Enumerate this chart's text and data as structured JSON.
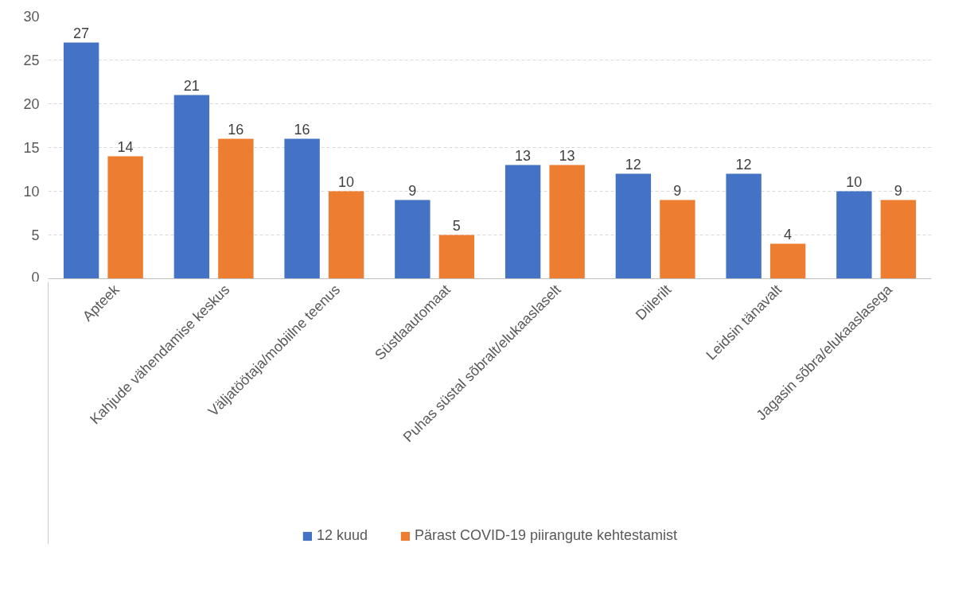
{
  "chart_data": {
    "type": "bar",
    "categories": [
      "Apteek",
      "Kahjude vähendamise keskus",
      "Väljatöötaja/mobiilne teenus",
      "Süstlaautomaat",
      "Puhas süstal sõbralt/elukaaslaselt",
      "Diilerilt",
      "Leidsin tänavalt",
      "Jagasin sõbra/elukaaslasega"
    ],
    "series": [
      {
        "name": "12 kuud",
        "color": "#4472c4",
        "values": [
          27,
          21,
          16,
          9,
          13,
          12,
          12,
          10
        ]
      },
      {
        "name": "Pärast COVID-19 piirangute kehtestamist",
        "color": "#ed7d31",
        "values": [
          14,
          16,
          10,
          5,
          13,
          9,
          4,
          9
        ]
      }
    ],
    "ylim": [
      0,
      30
    ],
    "yticks": [
      0,
      5,
      10,
      15,
      20,
      25,
      30
    ],
    "grid": "y",
    "legend": "bottom",
    "data_labels": true
  }
}
